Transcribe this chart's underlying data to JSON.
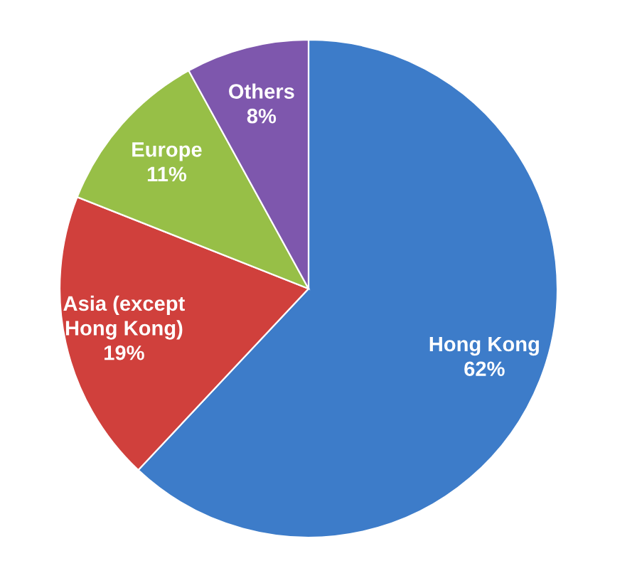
{
  "chart_data": {
    "type": "pie",
    "categories": [
      "Hong Kong",
      "Asia (except\nHong Kong)",
      "Europe",
      "Others"
    ],
    "values": [
      62,
      19,
      11,
      8
    ],
    "value_labels": [
      "62%",
      "19%",
      "11%",
      "8%"
    ],
    "colors": [
      "#3d7cc9",
      "#d0403c",
      "#97bf47",
      "#7e57ad"
    ],
    "legend": false
  }
}
